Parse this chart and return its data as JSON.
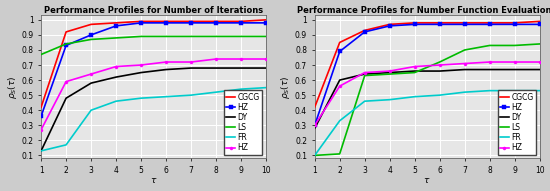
{
  "left_title": "Performance Profiles for Number of Iterations",
  "right_title": "Performance Profiles for Number Function Evaluations",
  "tau": [
    1,
    2,
    3,
    4,
    5,
    6,
    7,
    8,
    9,
    10
  ],
  "left": {
    "CGCG": [
      0.42,
      0.92,
      0.97,
      0.98,
      0.99,
      0.99,
      0.99,
      0.99,
      0.99,
      1.0
    ],
    "HZ_blue": [
      0.36,
      0.83,
      0.9,
      0.96,
      0.98,
      0.98,
      0.98,
      0.98,
      0.98,
      0.98
    ],
    "DY": [
      0.13,
      0.48,
      0.58,
      0.62,
      0.65,
      0.67,
      0.68,
      0.68,
      0.68,
      0.68
    ],
    "LS": [
      0.77,
      0.84,
      0.87,
      0.88,
      0.89,
      0.89,
      0.89,
      0.89,
      0.89,
      0.89
    ],
    "FR": [
      0.13,
      0.17,
      0.4,
      0.46,
      0.48,
      0.49,
      0.5,
      0.52,
      0.54,
      0.55
    ],
    "HZ_magenta": [
      0.27,
      0.59,
      0.64,
      0.69,
      0.7,
      0.72,
      0.72,
      0.74,
      0.74,
      0.74
    ]
  },
  "right": {
    "CGCG": [
      0.42,
      0.85,
      0.93,
      0.97,
      0.98,
      0.98,
      0.98,
      0.98,
      0.98,
      0.99
    ],
    "HZ_blue": [
      0.3,
      0.79,
      0.92,
      0.96,
      0.97,
      0.97,
      0.97,
      0.97,
      0.97,
      0.97
    ],
    "DY": [
      0.28,
      0.6,
      0.64,
      0.65,
      0.66,
      0.66,
      0.67,
      0.67,
      0.67,
      0.67
    ],
    "LS": [
      0.1,
      0.11,
      0.63,
      0.64,
      0.65,
      0.72,
      0.8,
      0.83,
      0.83,
      0.84
    ],
    "FR": [
      0.1,
      0.33,
      0.46,
      0.47,
      0.49,
      0.5,
      0.52,
      0.53,
      0.53,
      0.53
    ],
    "HZ_magenta": [
      0.3,
      0.56,
      0.65,
      0.66,
      0.69,
      0.7,
      0.71,
      0.72,
      0.72,
      0.72
    ]
  },
  "colors": {
    "CGCG": "#ff0000",
    "HZ_blue": "#0000ff",
    "DY": "#000000",
    "LS": "#00bb00",
    "FR": "#00cccc",
    "HZ_magenta": "#ff00ff"
  },
  "legend_labels": [
    "CGCG",
    "HZ",
    "DY",
    "LS",
    "FR",
    "HZ"
  ],
  "ylim": [
    0.08,
    1.03
  ],
  "xlim": [
    1,
    10
  ],
  "bg_color": "#e6e6e6",
  "grid_color": "#ffffff",
  "title_fontsize": 6.0,
  "label_fontsize": 6.5,
  "tick_fontsize": 5.5,
  "legend_fontsize": 5.5,
  "linewidth": 1.2
}
